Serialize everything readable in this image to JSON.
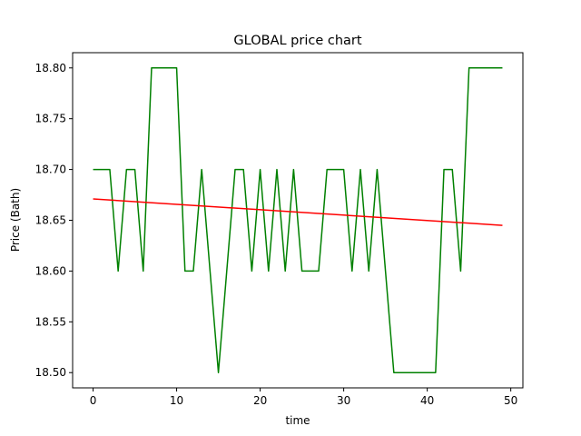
{
  "chart_data": {
    "type": "line",
    "title": "GLOBAL price chart",
    "xlabel": "time",
    "ylabel": "Price (Bath)",
    "xlim": [
      -2.45,
      51.45
    ],
    "ylim": [
      18.485,
      18.815
    ],
    "xticks": [
      0,
      10,
      20,
      30,
      40,
      50
    ],
    "xtick_labels": [
      "0",
      "10",
      "20",
      "30",
      "40",
      "50"
    ],
    "yticks": [
      18.5,
      18.55,
      18.6,
      18.65,
      18.7,
      18.75,
      18.8
    ],
    "ytick_labels": [
      "18.50",
      "18.55",
      "18.60",
      "18.65",
      "18.70",
      "18.75",
      "18.80"
    ],
    "grid": false,
    "series": [
      {
        "color": "#008000",
        "x": [
          0,
          1,
          2,
          3,
          4,
          5,
          6,
          7,
          8,
          9,
          10,
          11,
          12,
          13,
          14,
          15,
          16,
          17,
          18,
          19,
          20,
          21,
          22,
          23,
          24,
          25,
          26,
          27,
          28,
          29,
          30,
          31,
          32,
          33,
          34,
          35,
          36,
          37,
          38,
          39,
          40,
          41,
          42,
          43,
          44,
          45,
          46,
          47,
          48,
          49
        ],
        "values": [
          18.7,
          18.7,
          18.7,
          18.6,
          18.7,
          18.7,
          18.6,
          18.8,
          18.8,
          18.8,
          18.8,
          18.6,
          18.6,
          18.7,
          18.6,
          18.5,
          18.6,
          18.7,
          18.7,
          18.6,
          18.7,
          18.6,
          18.7,
          18.6,
          18.7,
          18.6,
          18.6,
          18.6,
          18.7,
          18.7,
          18.7,
          18.6,
          18.7,
          18.6,
          18.7,
          18.6,
          18.5,
          18.5,
          18.5,
          18.5,
          18.5,
          18.5,
          18.7,
          18.7,
          18.6,
          18.8,
          18.8,
          18.8,
          18.8,
          18.8
        ]
      },
      {
        "color": "#ff0000",
        "x": [
          0,
          49
        ],
        "values": [
          18.671,
          18.645
        ]
      }
    ]
  }
}
